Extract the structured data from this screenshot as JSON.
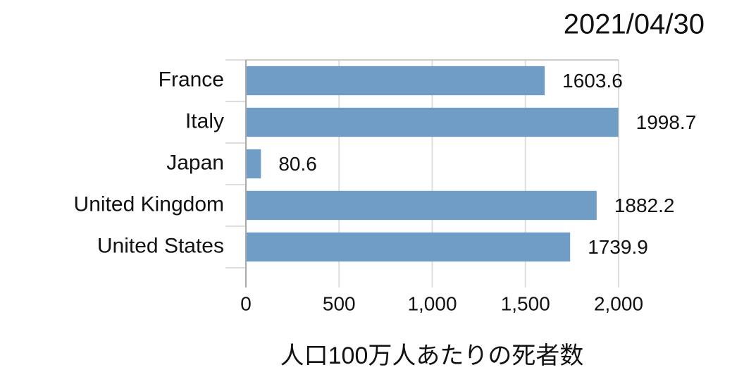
{
  "chart_data": {
    "type": "bar",
    "orientation": "horizontal",
    "title": "2021/04/30",
    "x_label": "人口100万人あたりの死者数",
    "categories": [
      "France",
      "Italy",
      "Japan",
      "United Kingdom",
      "United States"
    ],
    "values": [
      1603.6,
      1998.7,
      80.6,
      1882.2,
      1739.9
    ],
    "color": "#6f9dc6",
    "xlim": [
      0,
      2000
    ],
    "xticks": [
      0,
      500,
      {
        "value": 1000,
        "label": "1,000"
      },
      {
        "value": 1500,
        "label": "1,500"
      },
      {
        "value": 2000,
        "label": "2,000"
      }
    ],
    "grid": true
  }
}
